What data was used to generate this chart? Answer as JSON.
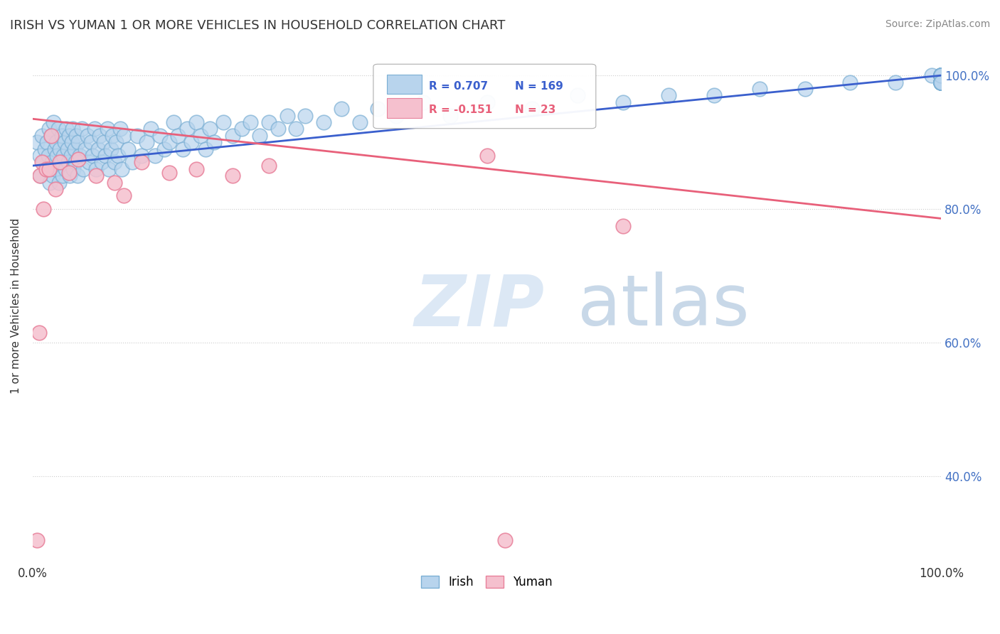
{
  "title": "IRISH VS YUMAN 1 OR MORE VEHICLES IN HOUSEHOLD CORRELATION CHART",
  "source": "Source: ZipAtlas.com",
  "ylabel": "1 or more Vehicles in Household",
  "xlim": [
    0.0,
    1.0
  ],
  "ylim": [
    0.27,
    1.04
  ],
  "irish_R": 0.707,
  "irish_N": 169,
  "yuman_R": -0.151,
  "yuman_N": 23,
  "irish_color": "#b8d4ed",
  "irish_edge_color": "#7bafd4",
  "yuman_color": "#f5c0ce",
  "yuman_edge_color": "#e8809a",
  "irish_trend_color": "#3a5fcd",
  "yuman_trend_color": "#e8607a",
  "background_color": "#ffffff",
  "irish_trend_x0": 0.0,
  "irish_trend_y0": 0.865,
  "irish_trend_x1": 1.0,
  "irish_trend_y1": 1.0,
  "yuman_trend_x0": 0.0,
  "yuman_trend_y0": 0.935,
  "yuman_trend_x1": 1.0,
  "yuman_trend_y1": 0.786,
  "irish_scatter_x": [
    0.005,
    0.008,
    0.009,
    0.01,
    0.012,
    0.013,
    0.015,
    0.016,
    0.017,
    0.018,
    0.019,
    0.02,
    0.021,
    0.022,
    0.023,
    0.024,
    0.025,
    0.026,
    0.027,
    0.028,
    0.029,
    0.03,
    0.031,
    0.032,
    0.033,
    0.034,
    0.035,
    0.036,
    0.037,
    0.038,
    0.039,
    0.04,
    0.041,
    0.042,
    0.043,
    0.044,
    0.045,
    0.046,
    0.047,
    0.048,
    0.049,
    0.05,
    0.052,
    0.054,
    0.056,
    0.058,
    0.06,
    0.062,
    0.064,
    0.066,
    0.068,
    0.07,
    0.072,
    0.074,
    0.076,
    0.078,
    0.08,
    0.082,
    0.084,
    0.086,
    0.088,
    0.09,
    0.092,
    0.094,
    0.096,
    0.098,
    0.1,
    0.105,
    0.11,
    0.115,
    0.12,
    0.125,
    0.13,
    0.135,
    0.14,
    0.145,
    0.15,
    0.155,
    0.16,
    0.165,
    0.17,
    0.175,
    0.18,
    0.185,
    0.19,
    0.195,
    0.2,
    0.21,
    0.22,
    0.23,
    0.24,
    0.25,
    0.26,
    0.27,
    0.28,
    0.29,
    0.3,
    0.32,
    0.34,
    0.36,
    0.38,
    0.4,
    0.43,
    0.46,
    0.5,
    0.55,
    0.6,
    0.65,
    0.7,
    0.75,
    0.8,
    0.85,
    0.9,
    0.95,
    0.99,
    1.0,
    1.0,
    1.0,
    1.0,
    1.0,
    1.0,
    1.0,
    1.0,
    1.0,
    1.0,
    1.0,
    1.0,
    1.0,
    1.0,
    1.0,
    1.0,
    1.0,
    1.0,
    1.0,
    1.0,
    1.0,
    1.0,
    1.0,
    1.0,
    1.0,
    1.0,
    1.0,
    1.0,
    1.0,
    1.0,
    1.0,
    1.0,
    1.0,
    1.0,
    1.0,
    1.0,
    1.0,
    1.0,
    1.0,
    1.0,
    1.0,
    1.0,
    1.0,
    1.0,
    1.0,
    1.0,
    1.0,
    1.0,
    1.0,
    1.0
  ],
  "irish_scatter_y": [
    0.9,
    0.88,
    0.85,
    0.91,
    0.87,
    0.89,
    0.86,
    0.9,
    0.88,
    0.92,
    0.84,
    0.91,
    0.87,
    0.85,
    0.93,
    0.89,
    0.86,
    0.9,
    0.88,
    0.92,
    0.84,
    0.89,
    0.87,
    0.91,
    0.85,
    0.88,
    0.9,
    0.86,
    0.92,
    0.89,
    0.87,
    0.91,
    0.85,
    0.88,
    0.9,
    0.92,
    0.86,
    0.89,
    0.87,
    0.91,
    0.85,
    0.9,
    0.88,
    0.92,
    0.86,
    0.89,
    0.91,
    0.87,
    0.9,
    0.88,
    0.92,
    0.86,
    0.89,
    0.91,
    0.87,
    0.9,
    0.88,
    0.92,
    0.86,
    0.89,
    0.91,
    0.87,
    0.9,
    0.88,
    0.92,
    0.86,
    0.91,
    0.89,
    0.87,
    0.91,
    0.88,
    0.9,
    0.92,
    0.88,
    0.91,
    0.89,
    0.9,
    0.93,
    0.91,
    0.89,
    0.92,
    0.9,
    0.93,
    0.91,
    0.89,
    0.92,
    0.9,
    0.93,
    0.91,
    0.92,
    0.93,
    0.91,
    0.93,
    0.92,
    0.94,
    0.92,
    0.94,
    0.93,
    0.95,
    0.93,
    0.95,
    0.94,
    0.96,
    0.94,
    0.96,
    0.95,
    0.97,
    0.96,
    0.97,
    0.97,
    0.98,
    0.98,
    0.99,
    0.99,
    1.0,
    1.0,
    0.99,
    1.0,
    0.99,
    1.0,
    0.99,
    1.0,
    0.99,
    1.0,
    0.99,
    1.0,
    0.99,
    1.0,
    0.99,
    1.0,
    0.99,
    1.0,
    0.99,
    1.0,
    0.99,
    1.0,
    0.99,
    1.0,
    0.99,
    1.0,
    0.99,
    1.0,
    0.99,
    1.0,
    0.99,
    1.0,
    0.99,
    1.0,
    0.99,
    1.0,
    0.99,
    1.0,
    0.99,
    1.0,
    0.99,
    1.0,
    0.99,
    1.0,
    0.99,
    1.0,
    0.99,
    1.0,
    0.99,
    1.0,
    0.99
  ],
  "yuman_scatter_x": [
    0.005,
    0.007,
    0.008,
    0.01,
    0.012,
    0.015,
    0.018,
    0.02,
    0.025,
    0.03,
    0.04,
    0.05,
    0.07,
    0.09,
    0.1,
    0.12,
    0.15,
    0.18,
    0.22,
    0.26,
    0.5,
    0.65,
    0.52
  ],
  "yuman_scatter_y": [
    0.305,
    0.615,
    0.85,
    0.87,
    0.8,
    0.86,
    0.86,
    0.91,
    0.83,
    0.87,
    0.855,
    0.875,
    0.85,
    0.84,
    0.82,
    0.87,
    0.855,
    0.86,
    0.85,
    0.865,
    0.88,
    0.775,
    0.305
  ]
}
